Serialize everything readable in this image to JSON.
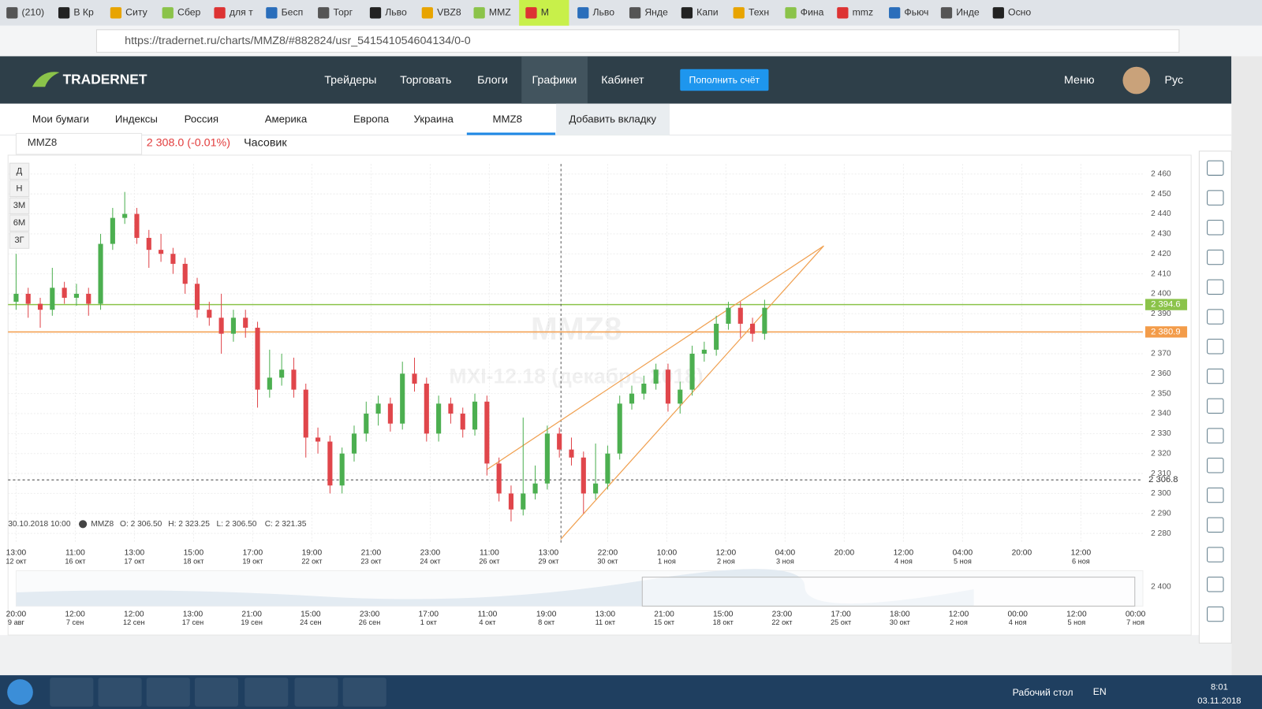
{
  "browser": {
    "tabs": [
      "(210)",
      "В Кр",
      "Ситу",
      "Сбер",
      "для т",
      "Бесп",
      "Торг",
      "Льво",
      "VBZ8",
      "MMZ",
      "M",
      "Льво",
      "Янде",
      "Капи",
      "Техн",
      "Фина",
      "mmz",
      "Фьюч",
      "Инде",
      "Осно"
    ],
    "active_tab": 10,
    "url": "https://tradernet.ru/charts/MMZ8/#882824/usr_541541054604134/0-0"
  },
  "header": {
    "logo": "TRADERNET",
    "nav": [
      "Трейдеры",
      "Торговать",
      "Блоги",
      "Графики",
      "Кабинет"
    ],
    "active_nav": 3,
    "button": "Пополнить счёт",
    "menu": "Меню",
    "language": "Рус"
  },
  "subnav": {
    "tabs": [
      "Мои бумаги",
      "Индексы",
      "Россия",
      "Америка",
      "Европа",
      "Украина",
      "MMZ8"
    ],
    "active_tab": 6,
    "add_tab": "Добавить вкладку"
  },
  "toolbar": {
    "symbol": "MMZ8",
    "price": "2 308.0 (-0.01%)",
    "interval": "Часовик",
    "periods": [
      "Д",
      "Н",
      "3М",
      "6М",
      "3Г"
    ]
  },
  "chart": {
    "type": "candlestick",
    "watermark": "MMZ8",
    "watermark_subtitle": "MXI-12.18 (декабрь 2018)",
    "ylim": [
      2275,
      2465
    ],
    "yticks": [
      {
        "value": 2280,
        "label": "2 280"
      },
      {
        "value": 2290,
        "label": "2 290"
      },
      {
        "value": 2300,
        "label": "2 300"
      },
      {
        "value": 2310,
        "label": "2 310"
      },
      {
        "value": 2320,
        "label": "2 320"
      },
      {
        "value": 2330,
        "label": "2 330"
      },
      {
        "value": 2340,
        "label": "2 340"
      },
      {
        "value": 2350,
        "label": "2 350"
      },
      {
        "value": 2360,
        "label": "2 360"
      },
      {
        "value": 2370,
        "label": "2 370"
      },
      {
        "value": 2380,
        "label": "2 380"
      },
      {
        "value": 2390,
        "label": "2 390"
      },
      {
        "value": 2400,
        "label": "2 400"
      },
      {
        "value": 2410,
        "label": "2 410"
      },
      {
        "value": 2420,
        "label": "2 420"
      },
      {
        "value": 2430,
        "label": "2 430"
      },
      {
        "value": 2440,
        "label": "2 440"
      },
      {
        "value": 2450,
        "label": "2 450"
      },
      {
        "value": 2460,
        "label": "2 460"
      }
    ],
    "candles": [
      [
        2396,
        2420,
        2392,
        2400
      ],
      [
        2400,
        2403,
        2388,
        2395
      ],
      [
        2395,
        2398,
        2383,
        2392
      ],
      [
        2392,
        2413,
        2389,
        2403
      ],
      [
        2403,
        2406,
        2395,
        2398
      ],
      [
        2398,
        2405,
        2394,
        2400
      ],
      [
        2400,
        2403,
        2389,
        2395
      ],
      [
        2395,
        2430,
        2392,
        2425
      ],
      [
        2425,
        2443,
        2422,
        2438
      ],
      [
        2438,
        2451,
        2435,
        2440
      ],
      [
        2440,
        2443,
        2425,
        2428
      ],
      [
        2428,
        2432,
        2413,
        2422
      ],
      [
        2422,
        2430,
        2416,
        2420
      ],
      [
        2420,
        2423,
        2410,
        2415
      ],
      [
        2415,
        2418,
        2400,
        2405
      ],
      [
        2405,
        2408,
        2388,
        2392
      ],
      [
        2392,
        2396,
        2384,
        2388
      ],
      [
        2388,
        2400,
        2370,
        2380
      ],
      [
        2380,
        2392,
        2376,
        2388
      ],
      [
        2388,
        2392,
        2378,
        2383
      ],
      [
        2383,
        2386,
        2343,
        2352
      ],
      [
        2352,
        2372,
        2348,
        2358
      ],
      [
        2358,
        2370,
        2354,
        2362
      ],
      [
        2362,
        2368,
        2348,
        2352
      ],
      [
        2352,
        2355,
        2318,
        2328
      ],
      [
        2328,
        2333,
        2320,
        2326
      ],
      [
        2326,
        2329,
        2300,
        2304
      ],
      [
        2304,
        2323,
        2300,
        2320
      ],
      [
        2320,
        2334,
        2316,
        2330
      ],
      [
        2330,
        2346,
        2326,
        2340
      ],
      [
        2340,
        2349,
        2334,
        2345
      ],
      [
        2345,
        2348,
        2331,
        2335
      ],
      [
        2335,
        2366,
        2332,
        2360
      ],
      [
        2360,
        2368,
        2351,
        2355
      ],
      [
        2355,
        2358,
        2326,
        2330
      ],
      [
        2330,
        2349,
        2326,
        2345
      ],
      [
        2345,
        2348,
        2335,
        2340
      ],
      [
        2340,
        2343,
        2328,
        2332
      ],
      [
        2332,
        2350,
        2329,
        2346
      ],
      [
        2346,
        2349,
        2309,
        2315
      ],
      [
        2315,
        2318,
        2296,
        2300
      ],
      [
        2300,
        2304,
        2286,
        2292
      ],
      [
        2292,
        2338,
        2289,
        2300
      ],
      [
        2300,
        2314,
        2297,
        2305
      ],
      [
        2305,
        2334,
        2302,
        2330
      ],
      [
        2330,
        2333,
        2318,
        2322
      ],
      [
        2322,
        2328,
        2314,
        2318
      ],
      [
        2318,
        2321,
        2290,
        2300
      ],
      [
        2300,
        2325,
        2297,
        2305
      ],
      [
        2305,
        2324,
        2302,
        2320
      ],
      [
        2320,
        2349,
        2317,
        2345
      ],
      [
        2345,
        2354,
        2342,
        2350
      ],
      [
        2350,
        2359,
        2347,
        2355
      ],
      [
        2355,
        2365,
        2352,
        2362
      ],
      [
        2362,
        2365,
        2341,
        2345
      ],
      [
        2345,
        2356,
        2340,
        2352
      ],
      [
        2352,
        2374,
        2349,
        2370
      ],
      [
        2370,
        2376,
        2366,
        2372
      ],
      [
        2372,
        2389,
        2369,
        2385
      ],
      [
        2385,
        2396,
        2382,
        2393
      ],
      [
        2393,
        2396,
        2378,
        2385
      ],
      [
        2385,
        2388,
        2376,
        2380
      ],
      [
        2380,
        2397,
        2377,
        2393
      ]
    ],
    "up_color": "#4caf50",
    "down_color": "#e0464b",
    "trendlines": [
      [
        39,
        2312,
        66.9,
        2424
      ],
      [
        45.1,
        2277,
        66.9,
        2424
      ]
    ],
    "trendline_color": "#f0a050",
    "levels": [
      {
        "value": 2394.6,
        "label": "2 394.6",
        "color": "#8bc34a"
      },
      {
        "value": 2380.9,
        "label": "2 380.9",
        "color": "#f39c4a"
      }
    ],
    "crosshair": {
      "value": 2306.8,
      "label": "2 306.8"
    },
    "ohlc_legend": {
      "time": "30.10.2018 10:00",
      "symbol": "MMZ8",
      "open": "O: 2 306.50",
      "high": "H: 2 323.25",
      "low": "L: 2 306.50",
      "close": "C: 2 321.35"
    },
    "x_labels": [
      {
        "time": "13:00",
        "date": "12 окт"
      },
      {
        "time": "11:00",
        "date": "16 окт"
      },
      {
        "time": "13:00",
        "date": "17 окт"
      },
      {
        "time": "15:00",
        "date": "18 окт"
      },
      {
        "time": "17:00",
        "date": "19 окт"
      },
      {
        "time": "19:00",
        "date": "22 окт"
      },
      {
        "time": "21:00",
        "date": "23 окт"
      },
      {
        "time": "23:00",
        "date": "24 окт"
      },
      {
        "time": "11:00",
        "date": "26 окт"
      },
      {
        "time": "13:00",
        "date": "29 окт"
      },
      {
        "time": "22:00",
        "date": "30 окт"
      },
      {
        "time": "10:00",
        "date": "1 ноя"
      },
      {
        "time": "12:00",
        "date": "2 ноя"
      },
      {
        "time": "04:00",
        "date": "3 ноя"
      },
      {
        "time": "20:00",
        "date": null
      },
      {
        "time": "12:00",
        "date": "4 ноя"
      },
      {
        "time": "04:00",
        "date": "5 ноя"
      },
      {
        "time": "20:00",
        "date": null
      },
      {
        "time": "12:00",
        "date": "6 ноя"
      }
    ],
    "navigator_price": "2 400",
    "navigator_labels": [
      {
        "time": "20:00",
        "date": "9 авг"
      },
      {
        "time": "12:00",
        "date": "7 сен"
      },
      {
        "time": "12:00",
        "date": "12 сен"
      },
      {
        "time": "13:00",
        "date": "17 сен"
      },
      {
        "time": "21:00",
        "date": "19 сен"
      },
      {
        "time": "15:00",
        "date": "24 сен"
      },
      {
        "time": "23:00",
        "date": "26 сен"
      },
      {
        "time": "17:00",
        "date": "1 окт"
      },
      {
        "time": "11:00",
        "date": "4 окт"
      },
      {
        "time": "19:00",
        "date": "8 окт"
      },
      {
        "time": "13:00",
        "date": "11 окт"
      },
      {
        "time": "21:00",
        "date": "15 окт"
      },
      {
        "time": "15:00",
        "date": "18 окт"
      },
      {
        "time": "23:00",
        "date": "22 окт"
      },
      {
        "time": "17:00",
        "date": "25 окт"
      },
      {
        "time": "18:00",
        "date": "30 окт"
      },
      {
        "time": "12:00",
        "date": "2 ноя"
      },
      {
        "time": "00:00",
        "date": "4 ноя"
      },
      {
        "time": "12:00",
        "date": "5 ноя"
      },
      {
        "time": "00:00",
        "date": "7 ноя"
      }
    ]
  },
  "taskbar": {
    "desktop": "Рабочий стол",
    "language": "EN",
    "time": "8:01",
    "date": "03.11.2018"
  }
}
